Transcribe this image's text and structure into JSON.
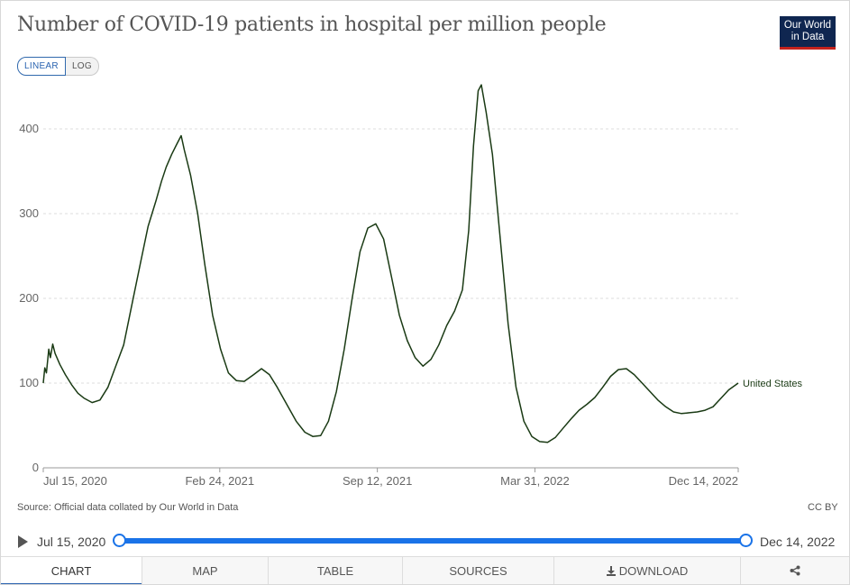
{
  "header": {
    "title": "Number of COVID-19 patients in hospital per million people",
    "logo_line1": "Our World",
    "logo_line2": "in Data"
  },
  "scale_toggle": {
    "linear_label": "LINEAR",
    "log_label": "LOG",
    "selected": "LINEAR"
  },
  "chart_data": {
    "type": "line",
    "title": "Number of COVID-19 patients in hospital per million people",
    "xlabel": "",
    "ylabel": "",
    "ylim": [
      0,
      450
    ],
    "y_ticks": [
      0,
      100,
      200,
      300,
      400
    ],
    "x_tick_labels": [
      "Jul 15, 2020",
      "Feb 24, 2021",
      "Sep 12, 2021",
      "Mar 31, 2022",
      "Dec 14, 2022"
    ],
    "x_tick_dates": [
      "2020-07-15",
      "2021-02-24",
      "2021-09-12",
      "2022-03-31",
      "2022-12-14"
    ],
    "xlim": [
      "2020-07-15",
      "2022-12-14"
    ],
    "grid": "horizontal dashed",
    "series": [
      {
        "name": "United States",
        "color": "#1a3a14",
        "points": [
          [
            "2020-07-15",
            100
          ],
          [
            "2020-07-17",
            118
          ],
          [
            "2020-07-19",
            112
          ],
          [
            "2020-07-22",
            140
          ],
          [
            "2020-07-24",
            130
          ],
          [
            "2020-07-27",
            146
          ],
          [
            "2020-07-30",
            135
          ],
          [
            "2020-08-05",
            122
          ],
          [
            "2020-08-12",
            110
          ],
          [
            "2020-08-20",
            98
          ],
          [
            "2020-08-28",
            88
          ],
          [
            "2020-09-05",
            82
          ],
          [
            "2020-09-15",
            77
          ],
          [
            "2020-09-25",
            80
          ],
          [
            "2020-10-05",
            95
          ],
          [
            "2020-10-15",
            120
          ],
          [
            "2020-10-25",
            145
          ],
          [
            "2020-11-05",
            195
          ],
          [
            "2020-11-15",
            240
          ],
          [
            "2020-11-25",
            285
          ],
          [
            "2020-12-05",
            315
          ],
          [
            "2020-12-12",
            338
          ],
          [
            "2020-12-18",
            355
          ],
          [
            "2020-12-25",
            370
          ],
          [
            "2021-01-01",
            383
          ],
          [
            "2021-01-06",
            392
          ],
          [
            "2021-01-10",
            375
          ],
          [
            "2021-01-18",
            345
          ],
          [
            "2021-01-27",
            300
          ],
          [
            "2021-02-05",
            240
          ],
          [
            "2021-02-15",
            180
          ],
          [
            "2021-02-25",
            140
          ],
          [
            "2021-03-07",
            112
          ],
          [
            "2021-03-17",
            103
          ],
          [
            "2021-03-27",
            102
          ],
          [
            "2021-04-08",
            110
          ],
          [
            "2021-04-18",
            117
          ],
          [
            "2021-04-28",
            110
          ],
          [
            "2021-05-08",
            95
          ],
          [
            "2021-05-20",
            75
          ],
          [
            "2021-06-01",
            55
          ],
          [
            "2021-06-12",
            42
          ],
          [
            "2021-06-22",
            37
          ],
          [
            "2021-07-02",
            38
          ],
          [
            "2021-07-12",
            55
          ],
          [
            "2021-07-22",
            90
          ],
          [
            "2021-08-01",
            140
          ],
          [
            "2021-08-11",
            200
          ],
          [
            "2021-08-21",
            255
          ],
          [
            "2021-08-31",
            283
          ],
          [
            "2021-09-10",
            288
          ],
          [
            "2021-09-20",
            270
          ],
          [
            "2021-09-30",
            225
          ],
          [
            "2021-10-10",
            180
          ],
          [
            "2021-10-20",
            150
          ],
          [
            "2021-10-30",
            130
          ],
          [
            "2021-11-09",
            120
          ],
          [
            "2021-11-19",
            128
          ],
          [
            "2021-11-29",
            145
          ],
          [
            "2021-12-09",
            168
          ],
          [
            "2021-12-19",
            185
          ],
          [
            "2021-12-29",
            210
          ],
          [
            "2022-01-06",
            280
          ],
          [
            "2022-01-12",
            380
          ],
          [
            "2022-01-18",
            445
          ],
          [
            "2022-01-22",
            452
          ],
          [
            "2022-01-28",
            420
          ],
          [
            "2022-02-05",
            370
          ],
          [
            "2022-02-15",
            270
          ],
          [
            "2022-02-25",
            170
          ],
          [
            "2022-03-07",
            95
          ],
          [
            "2022-03-17",
            55
          ],
          [
            "2022-03-27",
            37
          ],
          [
            "2022-04-06",
            31
          ],
          [
            "2022-04-16",
            30
          ],
          [
            "2022-04-26",
            36
          ],
          [
            "2022-05-06",
            47
          ],
          [
            "2022-05-16",
            58
          ],
          [
            "2022-05-26",
            68
          ],
          [
            "2022-06-05",
            75
          ],
          [
            "2022-06-15",
            83
          ],
          [
            "2022-06-25",
            95
          ],
          [
            "2022-07-05",
            108
          ],
          [
            "2022-07-15",
            116
          ],
          [
            "2022-07-25",
            117
          ],
          [
            "2022-08-04",
            110
          ],
          [
            "2022-08-14",
            100
          ],
          [
            "2022-08-24",
            90
          ],
          [
            "2022-09-03",
            80
          ],
          [
            "2022-09-13",
            72
          ],
          [
            "2022-09-23",
            66
          ],
          [
            "2022-10-03",
            64
          ],
          [
            "2022-10-13",
            65
          ],
          [
            "2022-10-23",
            66
          ],
          [
            "2022-11-02",
            68
          ],
          [
            "2022-11-12",
            72
          ],
          [
            "2022-11-22",
            82
          ],
          [
            "2022-12-02",
            92
          ],
          [
            "2022-12-14",
            100
          ]
        ]
      }
    ],
    "legend": "end-of-line label"
  },
  "footer": {
    "source": "Source: Official data collated by Our World in Data",
    "license": "CC BY"
  },
  "timeline": {
    "start_label": "Jul 15, 2020",
    "end_label": "Dec 14, 2022"
  },
  "tabs": [
    {
      "label": "CHART",
      "active": true
    },
    {
      "label": "MAP",
      "active": false
    },
    {
      "label": "TABLE",
      "active": false
    },
    {
      "label": "SOURCES",
      "active": false
    },
    {
      "label": "DOWNLOAD",
      "active": false
    }
  ],
  "icons": {
    "share": "share-icon",
    "download": "download-icon",
    "play": "play-icon"
  }
}
